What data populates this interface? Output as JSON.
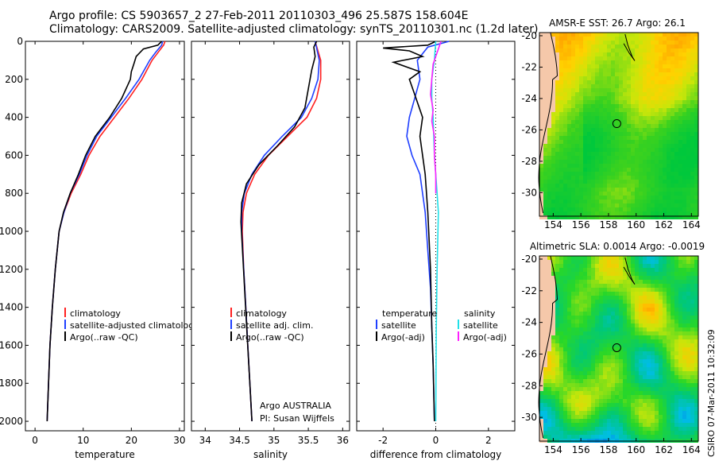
{
  "page": {
    "title_line1": "Argo profile: CS 5903657_2 27-Feb-2011 20110303_496 25.587S 158.604E",
    "title_line2": "Climatology: CARS2009. Satellite-adjusted climatology: synTS_20110301.nc (1.2d later)",
    "csiro_stamp": "CSIRO 07-Mar-2011 10:32:09"
  },
  "colors": {
    "climatology": "#ff2020",
    "satellite": "#1f3fff",
    "argo": "#000000",
    "salinity_satellite": "#20e0e8",
    "salinity_argo": "#ff20ff"
  },
  "chart_data": [
    {
      "type": "line",
      "id": "temperature",
      "xlabel": "temperature",
      "ylabel": "",
      "xlim": [
        -2,
        31
      ],
      "ylim": [
        2050,
        0
      ],
      "xticks": [
        "0",
        "10",
        "20",
        "30"
      ],
      "yticks": [
        "0",
        "200",
        "400",
        "600",
        "800",
        "1000",
        "1200",
        "1400",
        "1600",
        "1800",
        "2000"
      ],
      "legend": [
        "climatology",
        "satellite-adjusted climatology",
        "Argo(..raw -QC)"
      ],
      "series": [
        {
          "name": "climatology",
          "color_key": "climatology",
          "points": [
            [
              27.0,
              0
            ],
            [
              26.7,
              20
            ],
            [
              25.5,
              60
            ],
            [
              24.3,
              100
            ],
            [
              22.2,
              200
            ],
            [
              19.5,
              300
            ],
            [
              16.5,
              400
            ],
            [
              13.5,
              500
            ],
            [
              11.2,
              600
            ],
            [
              9.5,
              700
            ],
            [
              7.5,
              800
            ],
            [
              6.0,
              900
            ],
            [
              5.0,
              1000
            ],
            [
              4.2,
              1200
            ],
            [
              3.6,
              1400
            ],
            [
              3.1,
              1600
            ],
            [
              2.8,
              1800
            ],
            [
              2.5,
              2000
            ]
          ]
        },
        {
          "name": "satellite-adjusted climatology",
          "color_key": "satellite",
          "points": [
            [
              26.5,
              0
            ],
            [
              26.3,
              20
            ],
            [
              25.0,
              60
            ],
            [
              23.8,
              100
            ],
            [
              21.6,
              200
            ],
            [
              18.8,
              300
            ],
            [
              15.8,
              400
            ],
            [
              12.8,
              500
            ],
            [
              10.8,
              600
            ],
            [
              9.2,
              700
            ],
            [
              7.3,
              800
            ],
            [
              6.0,
              900
            ],
            [
              5.0,
              1000
            ],
            [
              4.2,
              1200
            ],
            [
              3.6,
              1400
            ],
            [
              3.1,
              1600
            ],
            [
              2.8,
              1800
            ],
            [
              2.5,
              2000
            ]
          ]
        },
        {
          "name": "Argo(..raw -QC)",
          "color_key": "argo",
          "points": [
            [
              26.3,
              0
            ],
            [
              25.5,
              20
            ],
            [
              22.5,
              40
            ],
            [
              21.0,
              80
            ],
            [
              20.5,
              120
            ],
            [
              20.0,
              160
            ],
            [
              19.8,
              200
            ],
            [
              18.0,
              300
            ],
            [
              15.5,
              400
            ],
            [
              12.5,
              500
            ],
            [
              10.5,
              600
            ],
            [
              9.0,
              700
            ],
            [
              7.3,
              800
            ],
            [
              5.9,
              900
            ],
            [
              5.0,
              1000
            ],
            [
              4.2,
              1200
            ],
            [
              3.6,
              1400
            ],
            [
              3.1,
              1600
            ],
            [
              2.8,
              1800
            ],
            [
              2.5,
              2000
            ]
          ]
        }
      ]
    },
    {
      "type": "line",
      "id": "salinity",
      "xlabel": "salinity",
      "xlim": [
        33.8,
        36.1
      ],
      "ylim": [
        2050,
        0
      ],
      "xticks": [
        "34",
        "34.5",
        "35",
        "35.5",
        "36"
      ],
      "legend": [
        "climatology",
        "satellite adj. clim.",
        "Argo(..raw -QC)"
      ],
      "annotation_line1": "Argo AUSTRALIA",
      "annotation_line2": "PI: Susan Wijffels",
      "series": [
        {
          "name": "climatology",
          "color_key": "climatology",
          "points": [
            [
              35.6,
              0
            ],
            [
              35.64,
              50
            ],
            [
              35.68,
              100
            ],
            [
              35.68,
              200
            ],
            [
              35.62,
              300
            ],
            [
              35.48,
              400
            ],
            [
              35.2,
              500
            ],
            [
              34.92,
              600
            ],
            [
              34.72,
              700
            ],
            [
              34.6,
              800
            ],
            [
              34.55,
              900
            ],
            [
              34.54,
              1000
            ],
            [
              34.56,
              1200
            ],
            [
              34.59,
              1400
            ],
            [
              34.62,
              1600
            ],
            [
              34.65,
              1800
            ],
            [
              34.68,
              2000
            ]
          ]
        },
        {
          "name": "satellite adj. clim.",
          "color_key": "satellite",
          "points": [
            [
              35.6,
              0
            ],
            [
              35.63,
              50
            ],
            [
              35.66,
              100
            ],
            [
              35.64,
              200
            ],
            [
              35.55,
              300
            ],
            [
              35.4,
              400
            ],
            [
              35.12,
              500
            ],
            [
              34.86,
              600
            ],
            [
              34.68,
              700
            ],
            [
              34.57,
              800
            ],
            [
              34.53,
              900
            ],
            [
              34.53,
              1000
            ],
            [
              34.56,
              1200
            ],
            [
              34.59,
              1400
            ],
            [
              34.62,
              1600
            ],
            [
              34.65,
              1800
            ],
            [
              34.68,
              2000
            ]
          ]
        },
        {
          "name": "Argo(..raw -QC)",
          "color_key": "argo",
          "points": [
            [
              35.62,
              0
            ],
            [
              35.58,
              30
            ],
            [
              35.6,
              80
            ],
            [
              35.55,
              150
            ],
            [
              35.5,
              250
            ],
            [
              35.45,
              350
            ],
            [
              35.3,
              450
            ],
            [
              35.05,
              550
            ],
            [
              34.78,
              650
            ],
            [
              34.6,
              750
            ],
            [
              34.53,
              850
            ],
            [
              34.52,
              950
            ],
            [
              34.55,
              1150
            ],
            [
              34.58,
              1350
            ],
            [
              34.61,
              1550
            ],
            [
              34.65,
              1800
            ],
            [
              34.68,
              2000
            ]
          ]
        }
      ]
    },
    {
      "type": "line",
      "id": "difference",
      "xlabel": "difference from climatology",
      "xlim": [
        -3.0,
        3.0
      ],
      "ylim": [
        2050,
        0
      ],
      "xticks": [
        "-2",
        "0",
        "2"
      ],
      "legend_left_heading": "temperature",
      "legend_right_heading": "salinity",
      "legend_left": [
        "satellite",
        "Argo(-adj)"
      ],
      "legend_right": [
        "satellite",
        "Argo(-adj)"
      ],
      "series": [
        {
          "name": "temperature satellite",
          "color_key": "satellite",
          "points": [
            [
              0.5,
              0
            ],
            [
              -0.3,
              30
            ],
            [
              -0.7,
              100
            ],
            [
              -0.6,
              200
            ],
            [
              -0.8,
              300
            ],
            [
              -1.0,
              400
            ],
            [
              -1.1,
              500
            ],
            [
              -0.9,
              600
            ],
            [
              -0.6,
              700
            ],
            [
              -0.4,
              900
            ],
            [
              -0.3,
              1100
            ],
            [
              -0.2,
              1300
            ],
            [
              -0.15,
              1500
            ],
            [
              -0.1,
              1700
            ],
            [
              -0.05,
              2000
            ]
          ]
        },
        {
          "name": "temperature Argo(-adj)",
          "color_key": "argo",
          "points": [
            [
              0.0,
              0
            ],
            [
              -0.3,
              20
            ],
            [
              -2.0,
              35
            ],
            [
              -1.0,
              50
            ],
            [
              -0.5,
              80
            ],
            [
              -1.6,
              110
            ],
            [
              -1.0,
              140
            ],
            [
              -0.6,
              160
            ],
            [
              -1.0,
              200
            ],
            [
              -0.8,
              280
            ],
            [
              -0.5,
              400
            ],
            [
              -0.6,
              500
            ],
            [
              -0.5,
              600
            ],
            [
              -0.4,
              700
            ],
            [
              -0.3,
              900
            ],
            [
              -0.2,
              1200
            ],
            [
              -0.15,
              1500
            ],
            [
              -0.1,
              1700
            ],
            [
              -0.05,
              2000
            ]
          ]
        },
        {
          "name": "salinity satellite",
          "color_key": "salinity_satellite",
          "points": [
            [
              0.0,
              0
            ],
            [
              -0.05,
              100
            ],
            [
              -0.15,
              200
            ],
            [
              -0.15,
              300
            ],
            [
              -0.1,
              400
            ],
            [
              -0.05,
              600
            ],
            [
              0.0,
              700
            ],
            [
              0.05,
              800
            ],
            [
              0.1,
              900
            ],
            [
              0.05,
              1200
            ],
            [
              0.02,
              1500
            ],
            [
              0.0,
              2000
            ]
          ]
        },
        {
          "name": "salinity Argo(-adj)",
          "color_key": "salinity_argo",
          "points": [
            [
              0.2,
              0
            ],
            [
              0.0,
              80
            ],
            [
              -0.1,
              120
            ],
            [
              -0.15,
              200
            ],
            [
              -0.2,
              280
            ],
            [
              -0.1,
              360
            ],
            [
              -0.15,
              420
            ],
            [
              -0.05,
              500
            ],
            [
              -0.05,
              600
            ],
            [
              0.0,
              700
            ],
            [
              0.0,
              800
            ]
          ]
        }
      ]
    }
  ],
  "maps": [
    {
      "id": "sst",
      "title": "AMSR-E SST: 26.7 Argo: 26.1",
      "xticks": [
        "154",
        "156",
        "158",
        "160",
        "162",
        "164"
      ],
      "yticks": [
        "-20",
        "-22",
        "-24",
        "-26",
        "-28",
        "-30"
      ],
      "xlim": [
        153.0,
        164.5
      ],
      "ylim": [
        -31.5,
        -19.8
      ],
      "marker": [
        158.6,
        -25.6
      ]
    },
    {
      "id": "sla",
      "title": "Altimetric SLA: 0.0014 Argo: -0.0019",
      "xticks": [
        "154",
        "156",
        "158",
        "160",
        "162",
        "164"
      ],
      "yticks": [
        "-20",
        "-22",
        "-24",
        "-26",
        "-28",
        "-30"
      ],
      "xlim": [
        153.0,
        164.5
      ],
      "ylim": [
        -31.5,
        -19.8
      ],
      "marker": [
        158.6,
        -25.6
      ]
    }
  ]
}
